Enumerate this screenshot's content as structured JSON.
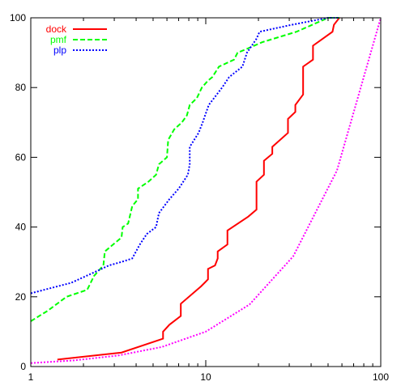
{
  "chart_data": {
    "type": "line",
    "title": "",
    "xlabel": "",
    "ylabel": "",
    "xscale": "log",
    "xlim": [
      1,
      100
    ],
    "ylim": [
      0,
      100
    ],
    "xticks": [
      {
        "value": 1,
        "label": "1"
      },
      {
        "value": 10,
        "label": "10"
      },
      {
        "value": 100,
        "label": "100"
      }
    ],
    "yticks": [
      {
        "value": 0,
        "label": "0"
      },
      {
        "value": 20,
        "label": "20"
      },
      {
        "value": 40,
        "label": "40"
      },
      {
        "value": 60,
        "label": "60"
      },
      {
        "value": 80,
        "label": "80"
      },
      {
        "value": 100,
        "label": "100"
      }
    ],
    "grid": false,
    "legend_position": "top-left",
    "series": [
      {
        "name": "dock",
        "color": "#ff0000",
        "style": "solid",
        "points": [
          [
            1.42,
            2
          ],
          [
            3.3,
            4
          ],
          [
            5.7,
            8
          ],
          [
            5.7,
            10
          ],
          [
            6.2,
            12
          ],
          [
            7.2,
            14.5
          ],
          [
            7.2,
            18
          ],
          [
            9.4,
            23
          ],
          [
            10.3,
            25
          ],
          [
            10.3,
            28
          ],
          [
            11.3,
            29
          ],
          [
            11.7,
            31
          ],
          [
            11.7,
            33
          ],
          [
            13.3,
            35
          ],
          [
            13.3,
            39
          ],
          [
            17.5,
            43
          ],
          [
            19.5,
            45
          ],
          [
            19.5,
            53
          ],
          [
            21.5,
            55
          ],
          [
            21.5,
            59
          ],
          [
            24,
            61
          ],
          [
            24,
            63
          ],
          [
            29.5,
            67
          ],
          [
            29.5,
            71
          ],
          [
            32.5,
            73
          ],
          [
            32.5,
            75
          ],
          [
            36,
            78
          ],
          [
            36,
            86
          ],
          [
            41,
            88
          ],
          [
            41,
            92
          ],
          [
            53,
            96
          ],
          [
            54,
            98
          ],
          [
            58,
            100
          ]
        ]
      },
      {
        "name": "pmf",
        "color": "#00ff00",
        "style": "dashed",
        "points": [
          [
            1.0,
            13
          ],
          [
            1.25,
            16
          ],
          [
            1.6,
            20
          ],
          [
            2.1,
            22
          ],
          [
            2.3,
            26
          ],
          [
            2.6,
            29
          ],
          [
            2.65,
            33
          ],
          [
            3.3,
            37
          ],
          [
            3.35,
            40
          ],
          [
            3.6,
            41
          ],
          [
            3.8,
            46
          ],
          [
            4.1,
            48
          ],
          [
            4.1,
            51
          ],
          [
            4.7,
            53
          ],
          [
            5.2,
            55
          ],
          [
            5.4,
            58
          ],
          [
            6.0,
            60
          ],
          [
            6.1,
            65
          ],
          [
            6.6,
            68
          ],
          [
            7.3,
            70
          ],
          [
            7.8,
            72
          ],
          [
            8.1,
            75
          ],
          [
            8.9,
            77
          ],
          [
            9.5,
            80
          ],
          [
            10.3,
            82
          ],
          [
            10.9,
            83
          ],
          [
            11.9,
            86
          ],
          [
            14.5,
            88
          ],
          [
            15.2,
            90
          ],
          [
            17,
            91
          ],
          [
            21,
            93
          ],
          [
            33,
            96
          ],
          [
            50,
            100
          ],
          [
            58,
            100
          ]
        ]
      },
      {
        "name": "plp",
        "color": "#0000ff",
        "style": "dotted",
        "points": [
          [
            1.0,
            21
          ],
          [
            1.7,
            24
          ],
          [
            2.3,
            27
          ],
          [
            2.8,
            29
          ],
          [
            3.3,
            30
          ],
          [
            3.8,
            31
          ],
          [
            4.2,
            35
          ],
          [
            4.6,
            38
          ],
          [
            5.2,
            40
          ],
          [
            5.4,
            44
          ],
          [
            6.2,
            48
          ],
          [
            7.0,
            51
          ],
          [
            7.9,
            55
          ],
          [
            8.1,
            58
          ],
          [
            8.1,
            63
          ],
          [
            9.1,
            67
          ],
          [
            9.6,
            70
          ],
          [
            10.4,
            75
          ],
          [
            12.4,
            80
          ],
          [
            13.6,
            83
          ],
          [
            16.2,
            86
          ],
          [
            17.2,
            90
          ],
          [
            19.5,
            94
          ],
          [
            20.3,
            96
          ],
          [
            31,
            98
          ],
          [
            50,
            100
          ],
          [
            58,
            100
          ]
        ]
      },
      {
        "name": "",
        "color": "#ff00ff",
        "style": "dotted",
        "points": [
          [
            1,
            1
          ],
          [
            1.78,
            1.78
          ],
          [
            3.16,
            3.16
          ],
          [
            5.62,
            5.62
          ],
          [
            10,
            10
          ],
          [
            17.8,
            17.8
          ],
          [
            31.6,
            31.6
          ],
          [
            56.2,
            56.2
          ],
          [
            100,
            100
          ]
        ]
      }
    ]
  }
}
